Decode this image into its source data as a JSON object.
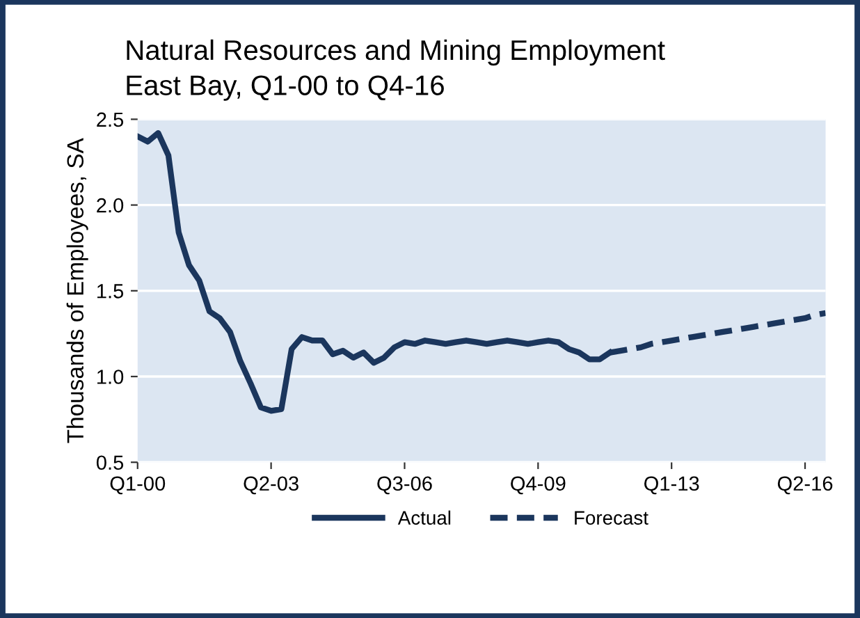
{
  "chart_data": {
    "type": "line",
    "title": "Natural Resources and Mining Employment",
    "subtitle": "East Bay, Q1-00 to Q4-16",
    "ylabel": "Thousands of Employees, SA",
    "categories": [
      "Q1-00",
      null,
      null,
      null,
      null,
      null,
      null,
      null,
      null,
      null,
      null,
      null,
      null,
      "Q2-03",
      null,
      null,
      null,
      null,
      null,
      null,
      null,
      null,
      null,
      null,
      null,
      null,
      "Q3-06",
      null,
      null,
      null,
      null,
      null,
      null,
      null,
      null,
      null,
      null,
      null,
      null,
      "Q4-09",
      null,
      null,
      null,
      null,
      null,
      null,
      null,
      null,
      null,
      null,
      null,
      null,
      "Q1-13",
      null,
      null,
      null,
      null,
      null,
      null,
      null,
      null,
      null,
      null,
      null,
      null,
      "Q2-16",
      null,
      null
    ],
    "series": [
      {
        "name": "Actual",
        "color": "#1b365d",
        "line_style": "solid",
        "values": [
          2.4,
          2.37,
          2.42,
          2.29,
          1.84,
          1.65,
          1.56,
          1.38,
          1.34,
          1.26,
          1.09,
          0.96,
          0.82,
          0.8,
          0.81,
          1.16,
          1.23,
          1.21,
          1.21,
          1.13,
          1.15,
          1.11,
          1.14,
          1.08,
          1.11,
          1.17,
          1.2,
          1.19,
          1.21,
          1.2,
          1.19,
          1.2,
          1.21,
          1.2,
          1.19,
          1.2,
          1.21,
          1.2,
          1.19,
          1.2,
          1.21,
          1.2,
          1.16,
          1.14,
          1.1,
          1.1,
          1.14,
          null,
          null,
          null,
          null,
          null,
          null,
          null,
          null,
          null,
          null,
          null,
          null,
          null,
          null,
          null,
          null,
          null,
          null,
          null,
          null,
          null
        ]
      },
      {
        "name": "Forecast",
        "color": "#1b365d",
        "line_style": "dashed",
        "values": [
          null,
          null,
          null,
          null,
          null,
          null,
          null,
          null,
          null,
          null,
          null,
          null,
          null,
          null,
          null,
          null,
          null,
          null,
          null,
          null,
          null,
          null,
          null,
          null,
          null,
          null,
          null,
          null,
          null,
          null,
          null,
          null,
          null,
          null,
          null,
          null,
          null,
          null,
          null,
          null,
          null,
          null,
          null,
          null,
          null,
          null,
          1.14,
          1.15,
          1.16,
          1.17,
          1.19,
          1.2,
          1.21,
          1.22,
          1.23,
          1.24,
          1.25,
          1.26,
          1.27,
          1.28,
          1.29,
          1.3,
          1.31,
          1.32,
          1.33,
          1.34,
          1.36,
          1.37
        ]
      }
    ],
    "ylim": [
      0.5,
      2.5
    ],
    "yticks": [
      {
        "value": 0.5,
        "label": "0.5"
      },
      {
        "value": 1.0,
        "label": "1.0"
      },
      {
        "value": 1.5,
        "label": "1.5"
      },
      {
        "value": 2.0,
        "label": "2.0"
      },
      {
        "value": 2.5,
        "label": "2.5"
      }
    ],
    "grid": "y",
    "legend": "bottom",
    "marker": "none"
  }
}
